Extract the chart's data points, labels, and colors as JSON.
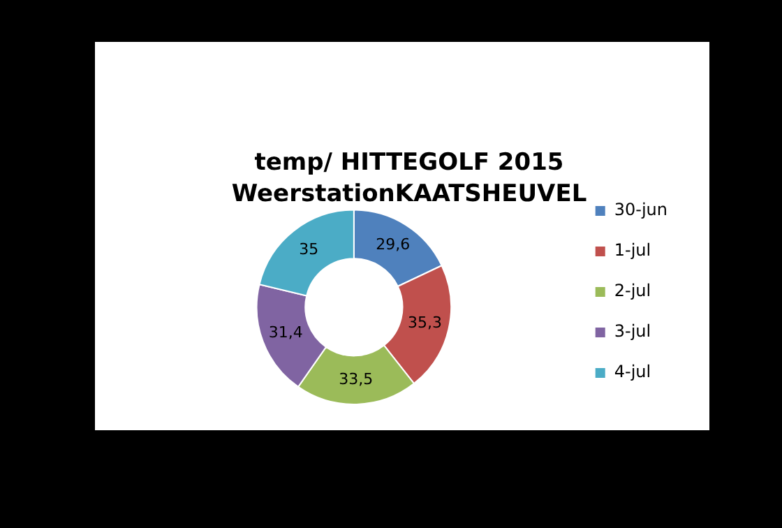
{
  "chart_data": {
    "type": "donut",
    "title": "temp/ HITTEGOLF 2015",
    "subtitle": "WeerstationKAATSHEUVEL",
    "categories": [
      "30-jun",
      "1-jul",
      "2-jul",
      "3-jul",
      "4-jul"
    ],
    "values": [
      29.6,
      35.3,
      33.5,
      31.4,
      35
    ],
    "value_labels": [
      "29,6",
      "35,3",
      "33,5",
      "31,4",
      "35"
    ],
    "colors": [
      "#4f81bd",
      "#c0504d",
      "#9bbb59",
      "#8064a2",
      "#4bacc6"
    ],
    "legend": "right"
  }
}
